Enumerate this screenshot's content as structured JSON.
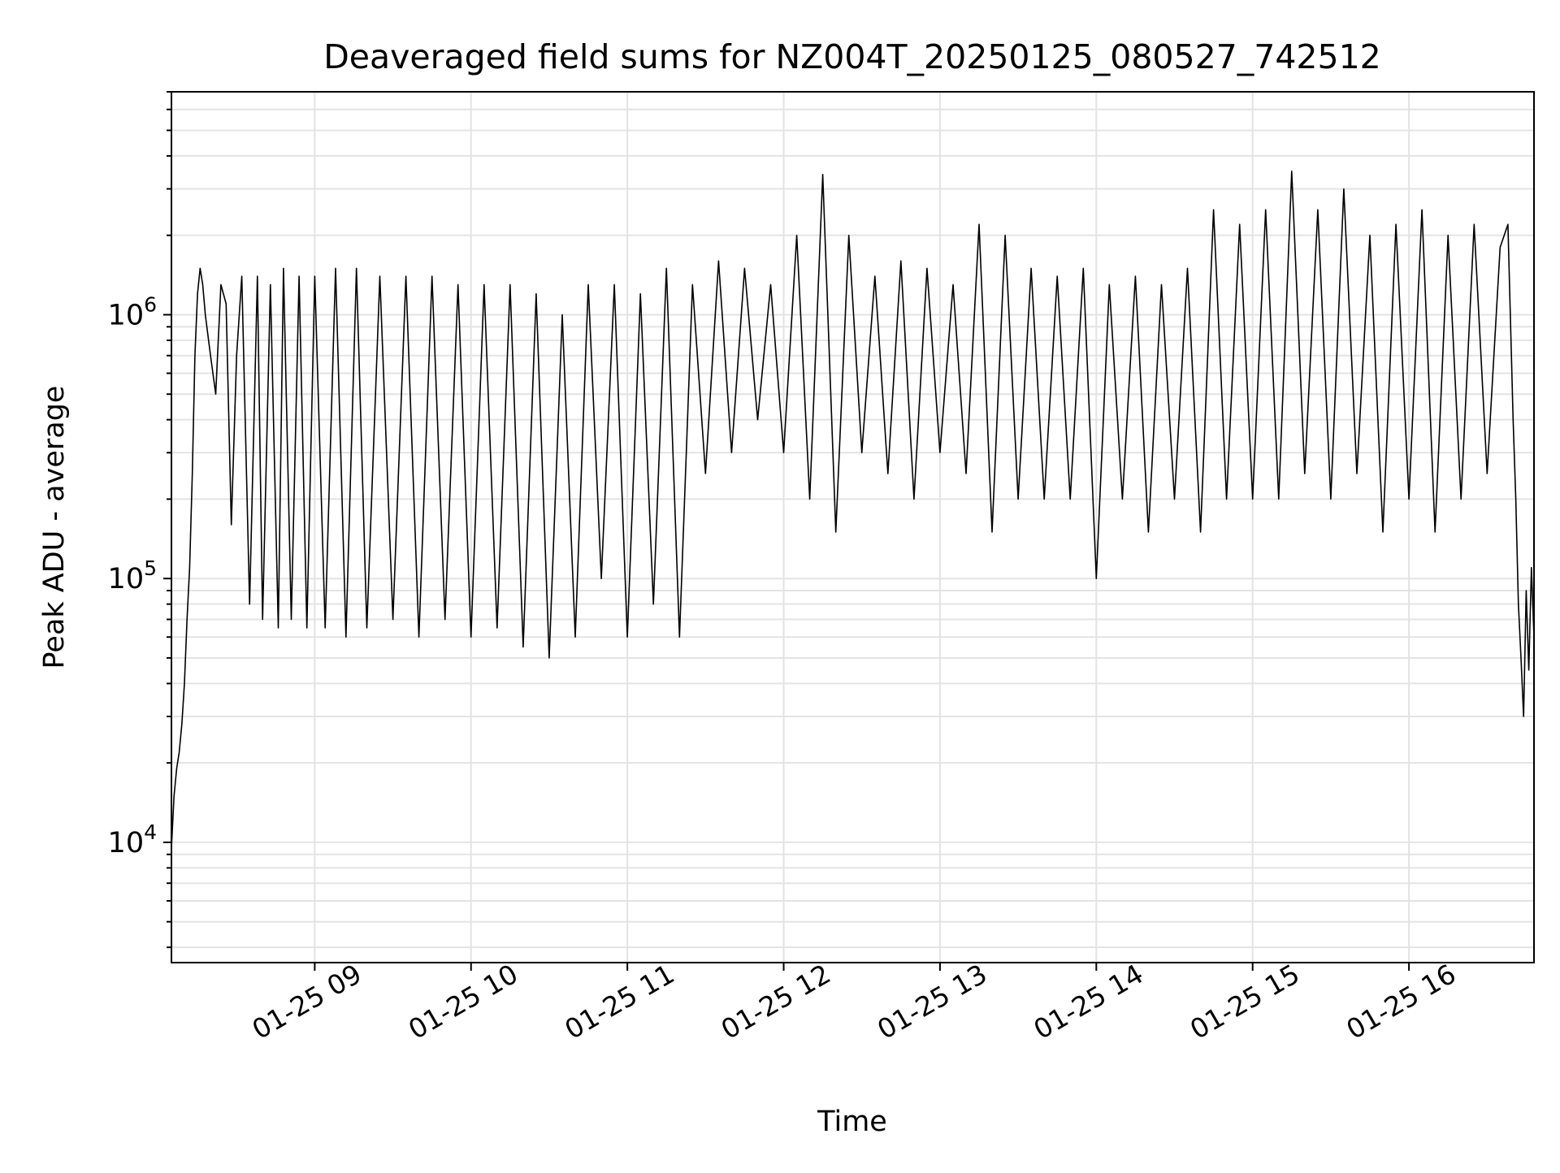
{
  "chart_data": {
    "type": "line",
    "title": "Deaveraged field sums for NZ004T_20250125_080527_742512",
    "xlabel": "Time",
    "ylabel": "Peak ADU - average",
    "yscale": "log",
    "xlim": [
      "01-25 08:05",
      "01-25 16:48"
    ],
    "ylim": [
      3500,
      7000000
    ],
    "grid": true,
    "line_color": "#000000",
    "x_ticks": [
      {
        "time": "01-25 09:00",
        "label": "01-25 09"
      },
      {
        "time": "01-25 10:00",
        "label": "01-25 10"
      },
      {
        "time": "01-25 11:00",
        "label": "01-25 11"
      },
      {
        "time": "01-25 12:00",
        "label": "01-25 12"
      },
      {
        "time": "01-25 13:00",
        "label": "01-25 13"
      },
      {
        "time": "01-25 14:00",
        "label": "01-25 14"
      },
      {
        "time": "01-25 15:00",
        "label": "01-25 15"
      },
      {
        "time": "01-25 16:00",
        "label": "01-25 16"
      }
    ],
    "y_ticks": [
      {
        "value": 10000,
        "base": "10",
        "exp": "4"
      },
      {
        "value": 100000,
        "base": "10",
        "exp": "5"
      },
      {
        "value": 1000000,
        "base": "10",
        "exp": "6"
      }
    ],
    "series": [
      {
        "x": [
          "01-25 08:05",
          "01-25 08:06",
          "01-25 08:07",
          "01-25 08:08",
          "01-25 08:09",
          "01-25 08:10",
          "01-25 08:11",
          "01-25 08:12",
          "01-25 08:13",
          "01-25 08:14",
          "01-25 08:15",
          "01-25 08:16",
          "01-25 08:17",
          "01-25 08:18",
          "01-25 08:20",
          "01-25 08:22",
          "01-25 08:24",
          "01-25 08:26",
          "01-25 08:28",
          "01-25 08:30",
          "01-25 08:32",
          "01-25 08:35",
          "01-25 08:38",
          "01-25 08:40",
          "01-25 08:43",
          "01-25 08:46",
          "01-25 08:48",
          "01-25 08:51",
          "01-25 08:54",
          "01-25 08:57",
          "01-25 09:00",
          "01-25 09:04",
          "01-25 09:08",
          "01-25 09:12",
          "01-25 09:16",
          "01-25 09:20",
          "01-25 09:25",
          "01-25 09:30",
          "01-25 09:35",
          "01-25 09:40",
          "01-25 09:45",
          "01-25 09:50",
          "01-25 09:55",
          "01-25 10:00",
          "01-25 10:05",
          "01-25 10:10",
          "01-25 10:15",
          "01-25 10:20",
          "01-25 10:25",
          "01-25 10:30",
          "01-25 10:35",
          "01-25 10:40",
          "01-25 10:45",
          "01-25 10:50",
          "01-25 10:55",
          "01-25 11:00",
          "01-25 11:05",
          "01-25 11:10",
          "01-25 11:15",
          "01-25 11:20",
          "01-25 11:25",
          "01-25 11:30",
          "01-25 11:35",
          "01-25 11:40",
          "01-25 11:45",
          "01-25 11:50",
          "01-25 11:55",
          "01-25 12:00",
          "01-25 12:05",
          "01-25 12:10",
          "01-25 12:15",
          "01-25 12:20",
          "01-25 12:25",
          "01-25 12:30",
          "01-25 12:35",
          "01-25 12:40",
          "01-25 12:45",
          "01-25 12:50",
          "01-25 12:55",
          "01-25 13:00",
          "01-25 13:05",
          "01-25 13:10",
          "01-25 13:15",
          "01-25 13:20",
          "01-25 13:25",
          "01-25 13:30",
          "01-25 13:35",
          "01-25 13:40",
          "01-25 13:45",
          "01-25 13:50",
          "01-25 13:55",
          "01-25 14:00",
          "01-25 14:05",
          "01-25 14:10",
          "01-25 14:15",
          "01-25 14:20",
          "01-25 14:25",
          "01-25 14:30",
          "01-25 14:35",
          "01-25 14:40",
          "01-25 14:45",
          "01-25 14:50",
          "01-25 14:55",
          "01-25 15:00",
          "01-25 15:05",
          "01-25 15:10",
          "01-25 15:15",
          "01-25 15:20",
          "01-25 15:25",
          "01-25 15:30",
          "01-25 15:35",
          "01-25 15:40",
          "01-25 15:45",
          "01-25 15:50",
          "01-25 15:55",
          "01-25 16:00",
          "01-25 16:05",
          "01-25 16:10",
          "01-25 16:15",
          "01-25 16:20",
          "01-25 16:25",
          "01-25 16:30",
          "01-25 16:35",
          "01-25 16:38",
          "01-25 16:40",
          "01-25 16:41",
          "01-25 16:42",
          "01-25 16:43",
          "01-25 16:44",
          "01-25 16:45",
          "01-25 16:46",
          "01-25 16:47",
          "01-25 16:48"
        ],
        "y": [
          9500,
          15000,
          19000,
          22000,
          28000,
          40000,
          70000,
          110000,
          250000,
          700000,
          1200000,
          1500000,
          1300000,
          1000000,
          700000,
          500000,
          1300000,
          1100000,
          160000,
          700000,
          1400000,
          80000,
          1400000,
          70000,
          1300000,
          65000,
          1500000,
          70000,
          1400000,
          65000,
          1400000,
          65000,
          1500000,
          60000,
          1500000,
          65000,
          1400000,
          70000,
          1400000,
          60000,
          1400000,
          70000,
          1300000,
          60000,
          1300000,
          65000,
          1300000,
          55000,
          1200000,
          50000,
          1000000,
          60000,
          1300000,
          100000,
          1300000,
          60000,
          1200000,
          80000,
          1500000,
          60000,
          1300000,
          250000,
          1600000,
          300000,
          1500000,
          400000,
          1300000,
          300000,
          2000000,
          200000,
          3400000,
          150000,
          2000000,
          300000,
          1400000,
          250000,
          1600000,
          200000,
          1500000,
          300000,
          1300000,
          250000,
          2200000,
          150000,
          2000000,
          200000,
          1500000,
          200000,
          1400000,
          200000,
          1500000,
          100000,
          1300000,
          200000,
          1400000,
          150000,
          1300000,
          200000,
          1500000,
          150000,
          2500000,
          200000,
          2200000,
          200000,
          2500000,
          200000,
          3500000,
          250000,
          2500000,
          200000,
          3000000,
          250000,
          2000000,
          150000,
          2200000,
          200000,
          2500000,
          150000,
          2000000,
          200000,
          2200000,
          250000,
          1800000,
          2200000,
          400000,
          200000,
          80000,
          50000,
          30000,
          90000,
          45000,
          110000,
          60000
        ]
      }
    ]
  }
}
